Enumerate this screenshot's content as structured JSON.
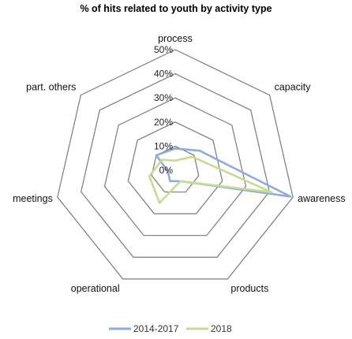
{
  "chart_data": {
    "type": "radar",
    "title": "% of hits related to youth by activity type",
    "categories": [
      "process",
      "capacity",
      "awareness",
      "products",
      "operational",
      "meetings",
      "part. others"
    ],
    "ticks": [
      "0%",
      "10%",
      "20%",
      "30%",
      "40%",
      "50%"
    ],
    "rlim": [
      0,
      50
    ],
    "grid": true,
    "legend_position": "bottom",
    "series": [
      {
        "name": "2014-2017",
        "color": "#8faadc",
        "values": [
          9,
          13,
          49,
          5,
          5,
          3,
          10
        ]
      },
      {
        "name": "2018",
        "color": "#c5dc8f",
        "values": [
          4,
          9,
          41,
          5,
          15,
          11,
          7
        ]
      }
    ]
  }
}
